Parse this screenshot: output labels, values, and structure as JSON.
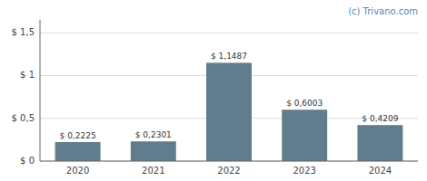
{
  "chart_data": {
    "type": "bar",
    "categories": [
      "2020",
      "2021",
      "2022",
      "2023",
      "2024"
    ],
    "values": [
      0.2225,
      0.2301,
      1.1487,
      0.6003,
      0.4209
    ],
    "value_labels": [
      "$ 0,2225",
      "$ 0,2301",
      "$ 1,1487",
      "$ 0,6003",
      "$ 0,4209"
    ],
    "data_labels": true,
    "color": "#5f7d8c",
    "ylim": [
      0,
      1.65
    ],
    "yticks": [
      {
        "value": 0,
        "label": "$ 0"
      },
      {
        "value": 0.5,
        "label": "$ 0,5"
      },
      {
        "value": 1.0,
        "label": "$ 1"
      },
      {
        "value": 1.5,
        "label": "$ 1,5"
      }
    ],
    "grid": true,
    "annotations": [
      "(c) Trivano.com"
    ]
  }
}
